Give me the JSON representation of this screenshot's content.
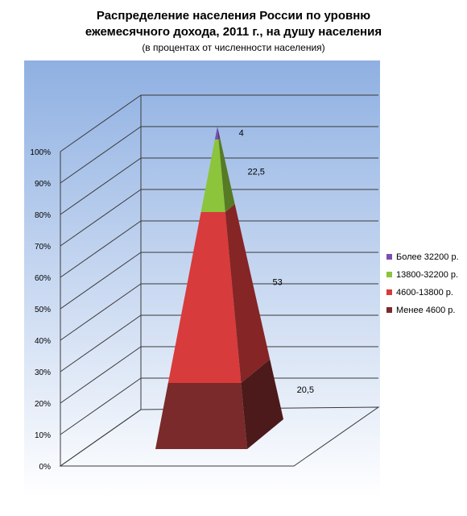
{
  "chart_data": {
    "type": "pyramid",
    "title_lines": [
      "Распределение населения России по уровню",
      "ежемесячного дохода, 2011 г., на душу населения"
    ],
    "subtitle": "(в процентах от численности населения)",
    "ylim": [
      0,
      100
    ],
    "yticks": [
      "0%",
      "10%",
      "20%",
      "30%",
      "40%",
      "50%",
      "60%",
      "70%",
      "80%",
      "90%",
      "100%"
    ],
    "series": [
      {
        "name": "Менее 4600 р.",
        "value": 20.5,
        "label": "20,5",
        "color": "#7a2a2a"
      },
      {
        "name": "4600-13800 р.",
        "value": 53,
        "label": "53",
        "color": "#d83b3b"
      },
      {
        "name": "13800-32200 р.",
        "value": 22.5,
        "label": "22,5",
        "color": "#8cc43c"
      },
      {
        "name": "Более 32200 р.",
        "value": 4,
        "label": "4",
        "color": "#7b4fb0"
      }
    ],
    "legend_order": [
      "Более 32200 р.",
      "13800-32200 р.",
      "4600-13800 р.",
      "Менее 4600 р."
    ],
    "legend_position": "right",
    "grid": true
  }
}
